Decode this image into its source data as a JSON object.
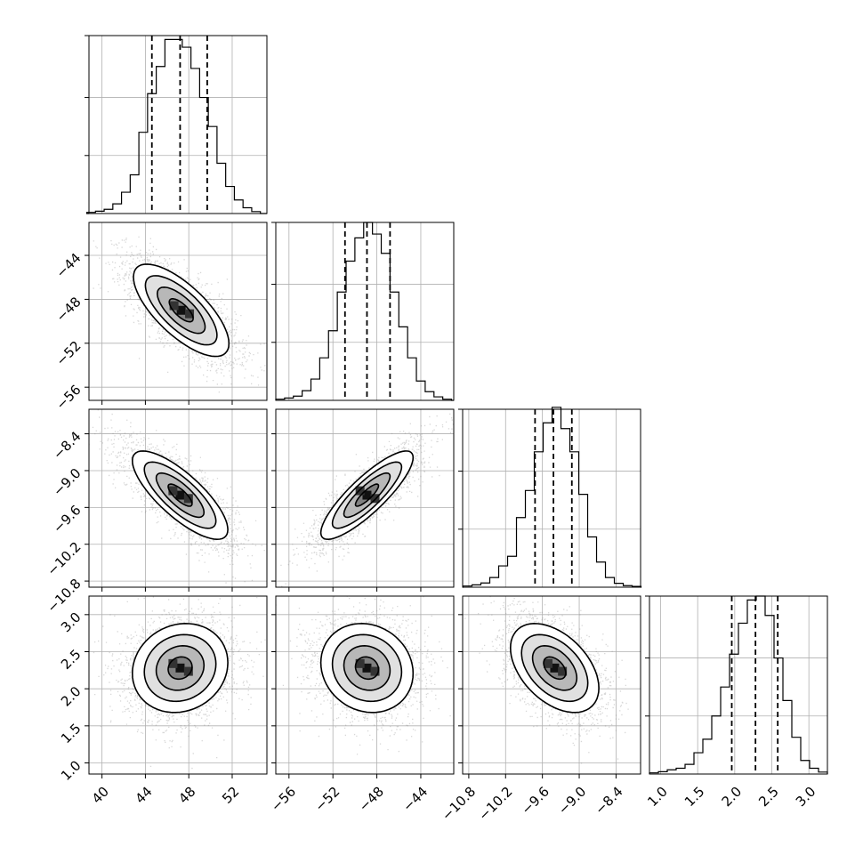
{
  "chart_data": {
    "type": "corner",
    "variables": [
      {
        "ticks": [
          40,
          44,
          48,
          52
        ],
        "tick_labels": [
          "40",
          "44",
          "48",
          "52"
        ],
        "range": [
          38.8,
          55.2
        ],
        "quantiles": [
          44.6,
          47.2,
          49.7
        ],
        "hist_bins": [
          {
            "x": 39.0,
            "h": 0.006
          },
          {
            "x": 39.8,
            "h": 0.012
          },
          {
            "x": 40.6,
            "h": 0.022
          },
          {
            "x": 41.4,
            "h": 0.05
          },
          {
            "x": 42.2,
            "h": 0.11
          },
          {
            "x": 43.0,
            "h": 0.2
          },
          {
            "x": 43.8,
            "h": 0.42
          },
          {
            "x": 44.6,
            "h": 0.62
          },
          {
            "x": 45.4,
            "h": 0.76
          },
          {
            "x": 46.2,
            "h": 0.9
          },
          {
            "x": 47.0,
            "h": 0.9
          },
          {
            "x": 47.8,
            "h": 0.86
          },
          {
            "x": 48.6,
            "h": 0.75
          },
          {
            "x": 49.4,
            "h": 0.6
          },
          {
            "x": 50.2,
            "h": 0.45
          },
          {
            "x": 51.0,
            "h": 0.26
          },
          {
            "x": 51.8,
            "h": 0.14
          },
          {
            "x": 52.6,
            "h": 0.07
          },
          {
            "x": 53.4,
            "h": 0.03
          },
          {
            "x": 54.2,
            "h": 0.01
          }
        ]
      },
      {
        "ticks": [
          -56,
          -52,
          -48,
          -44
        ],
        "tick_labels": [
          "−56",
          "−52",
          "−48",
          "−44"
        ],
        "range": [
          -57.2,
          -41.0
        ],
        "quantiles": [
          -50.9,
          -48.9,
          -46.8
        ],
        "hist_bins": [
          {
            "x": -56.8,
            "h": 0.006
          },
          {
            "x": -56.0,
            "h": 0.012
          },
          {
            "x": -55.2,
            "h": 0.022
          },
          {
            "x": -54.4,
            "h": 0.05
          },
          {
            "x": -53.6,
            "h": 0.11
          },
          {
            "x": -52.8,
            "h": 0.22
          },
          {
            "x": -52.0,
            "h": 0.36
          },
          {
            "x": -51.2,
            "h": 0.56
          },
          {
            "x": -50.4,
            "h": 0.72
          },
          {
            "x": -49.6,
            "h": 0.84
          },
          {
            "x": -48.8,
            "h": 0.92
          },
          {
            "x": -48.0,
            "h": 0.86
          },
          {
            "x": -47.2,
            "h": 0.76
          },
          {
            "x": -46.4,
            "h": 0.56
          },
          {
            "x": -45.6,
            "h": 0.38
          },
          {
            "x": -44.8,
            "h": 0.22
          },
          {
            "x": -44.0,
            "h": 0.1
          },
          {
            "x": -43.2,
            "h": 0.045
          },
          {
            "x": -42.4,
            "h": 0.018
          },
          {
            "x": -41.6,
            "h": 0.006
          }
        ]
      },
      {
        "ticks": [
          -10.8,
          -10.2,
          -9.6,
          -9.0,
          -8.4
        ],
        "tick_labels": [
          "−10.8",
          "−10.2",
          "−9.6",
          "−9.0",
          "−8.4"
        ],
        "range": [
          -10.9,
          -8.0
        ],
        "quantiles": [
          -9.72,
          -9.42,
          -9.12
        ],
        "hist_bins": [
          {
            "x": -10.82,
            "h": 0.006
          },
          {
            "x": -10.675,
            "h": 0.012
          },
          {
            "x": -10.53,
            "h": 0.022
          },
          {
            "x": -10.385,
            "h": 0.05
          },
          {
            "x": -10.24,
            "h": 0.11
          },
          {
            "x": -10.095,
            "h": 0.16
          },
          {
            "x": -9.95,
            "h": 0.36
          },
          {
            "x": -9.805,
            "h": 0.5
          },
          {
            "x": -9.66,
            "h": 0.7
          },
          {
            "x": -9.515,
            "h": 0.85
          },
          {
            "x": -9.37,
            "h": 0.93
          },
          {
            "x": -9.225,
            "h": 0.82
          },
          {
            "x": -9.08,
            "h": 0.7
          },
          {
            "x": -8.935,
            "h": 0.48
          },
          {
            "x": -8.79,
            "h": 0.26
          },
          {
            "x": -8.645,
            "h": 0.13
          },
          {
            "x": -8.5,
            "h": 0.05
          },
          {
            "x": -8.355,
            "h": 0.02
          },
          {
            "x": -8.21,
            "h": 0.008
          },
          {
            "x": -8.065,
            "h": 0.004
          }
        ]
      },
      {
        "ticks": [
          1.0,
          1.5,
          2.0,
          2.5,
          3.0
        ],
        "tick_labels": [
          "1.0",
          "1.5",
          "2.0",
          "2.5",
          "3.0"
        ],
        "range": [
          0.85,
          3.25
        ],
        "quantiles": [
          1.96,
          2.28,
          2.58
        ],
        "hist_bins": [
          {
            "x": 0.91,
            "h": 0.006
          },
          {
            "x": 1.03,
            "h": 0.012
          },
          {
            "x": 1.15,
            "h": 0.022
          },
          {
            "x": 1.27,
            "h": 0.03
          },
          {
            "x": 1.39,
            "h": 0.05
          },
          {
            "x": 1.51,
            "h": 0.11
          },
          {
            "x": 1.63,
            "h": 0.18
          },
          {
            "x": 1.75,
            "h": 0.3
          },
          {
            "x": 1.87,
            "h": 0.45
          },
          {
            "x": 1.99,
            "h": 0.62
          },
          {
            "x": 2.11,
            "h": 0.78
          },
          {
            "x": 2.23,
            "h": 0.9
          },
          {
            "x": 2.35,
            "h": 0.92
          },
          {
            "x": 2.47,
            "h": 0.82
          },
          {
            "x": 2.59,
            "h": 0.6
          },
          {
            "x": 2.71,
            "h": 0.38
          },
          {
            "x": 2.83,
            "h": 0.19
          },
          {
            "x": 2.95,
            "h": 0.07
          },
          {
            "x": 3.07,
            "h": 0.03
          },
          {
            "x": 3.19,
            "h": 0.01
          }
        ]
      }
    ],
    "hist_ylim": [
      0,
      0.92
    ],
    "hist_yticks": [
      0.3,
      0.6
    ],
    "pairs": [
      {
        "row": 1,
        "col": 0,
        "center": [
          47.3,
          -49.0
        ],
        "sd": [
          2.2,
          2.1
        ],
        "rho": -0.72
      },
      {
        "row": 2,
        "col": 0,
        "center": [
          47.2,
          -9.4
        ],
        "sd": [
          2.2,
          0.36
        ],
        "rho": -0.78
      },
      {
        "row": 2,
        "col": 1,
        "center": [
          -48.9,
          -9.4
        ],
        "sd": [
          2.1,
          0.36
        ],
        "rho": 0.85
      },
      {
        "row": 3,
        "col": 0,
        "center": [
          47.2,
          2.28
        ],
        "sd": [
          2.2,
          0.3
        ],
        "rho": 0.12
      },
      {
        "row": 3,
        "col": 1,
        "center": [
          -48.9,
          2.28
        ],
        "sd": [
          2.1,
          0.3
        ],
        "rho": -0.12
      },
      {
        "row": 3,
        "col": 2,
        "center": [
          -9.4,
          2.28
        ],
        "sd": [
          0.36,
          0.3
        ],
        "rho": -0.45
      }
    ],
    "contour_levels_sigma": [
      0.5,
      1.0,
      1.5,
      2.0
    ],
    "colors": {
      "line": "#000000",
      "scatter": "#8c8c8c",
      "grid": "#b0b0b0"
    },
    "grid": true
  }
}
